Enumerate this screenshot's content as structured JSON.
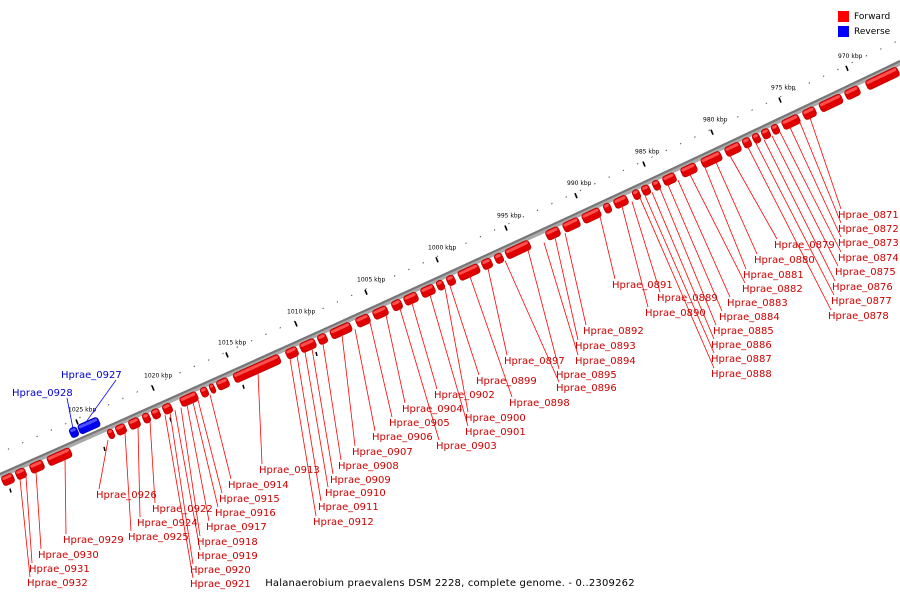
{
  "caption": "Halanaerobium praevalens DSM 2228, complete genome. - 0..2309262",
  "legend": [
    {
      "label": "Forward",
      "color": "#ff0000"
    },
    {
      "label": "Reverse",
      "color": "#0000ff"
    }
  ],
  "colors": {
    "forward": "#ff0000",
    "reverse": "#0000ff",
    "backbone": "#888888"
  },
  "scale_ticks": [
    "1025 kbp",
    "1020 kbp",
    "1015 kbp",
    "1010 kbp",
    "1005 kbp",
    "1000 kbp",
    "995 kbp",
    "990 kbp",
    "985 kbp",
    "980 kbp",
    "975 kbp",
    "970 kbp"
  ],
  "reverse_genes": [
    "Hprae_0928",
    "Hprae_0927"
  ],
  "forward_genes": [
    "Hprae_0932",
    "Hprae_0931",
    "Hprae_0930",
    "Hprae_0929",
    "Hprae_0926",
    "Hprae_0925",
    "Hprae_0924",
    "Hprae_0922",
    "Hprae_0921",
    "Hprae_0920",
    "Hprae_0919",
    "Hprae_0918",
    "Hprae_0917",
    "Hprae_0916",
    "Hprae_0915",
    "Hprae_0914",
    "Hprae_0913",
    "Hprae_0912",
    "Hprae_0911",
    "Hprae_0910",
    "Hprae_0909",
    "Hprae_0908",
    "Hprae_0907",
    "Hprae_0906",
    "Hprae_0905",
    "Hprae_0904",
    "Hprae_0903",
    "Hprae_0902",
    "Hprae_0901",
    "Hprae_0900",
    "Hprae_0899",
    "Hprae_0898",
    "Hprae_0897",
    "Hprae_0896",
    "Hprae_0895",
    "Hprae_0894",
    "Hprae_0893",
    "Hprae_0892",
    "Hprae_0891",
    "Hprae_0890",
    "Hprae_0889",
    "Hprae_0888",
    "Hprae_0887",
    "Hprae_0886",
    "Hprae_0885",
    "Hprae_0884",
    "Hprae_0883",
    "Hprae_0882",
    "Hprae_0881",
    "Hprae_0880",
    "Hprae_0879",
    "Hprae_0878",
    "Hprae_0877",
    "Hprae_0876",
    "Hprae_0875",
    "Hprae_0874",
    "Hprae_0873",
    "Hprae_0872",
    "Hprae_0871"
  ]
}
